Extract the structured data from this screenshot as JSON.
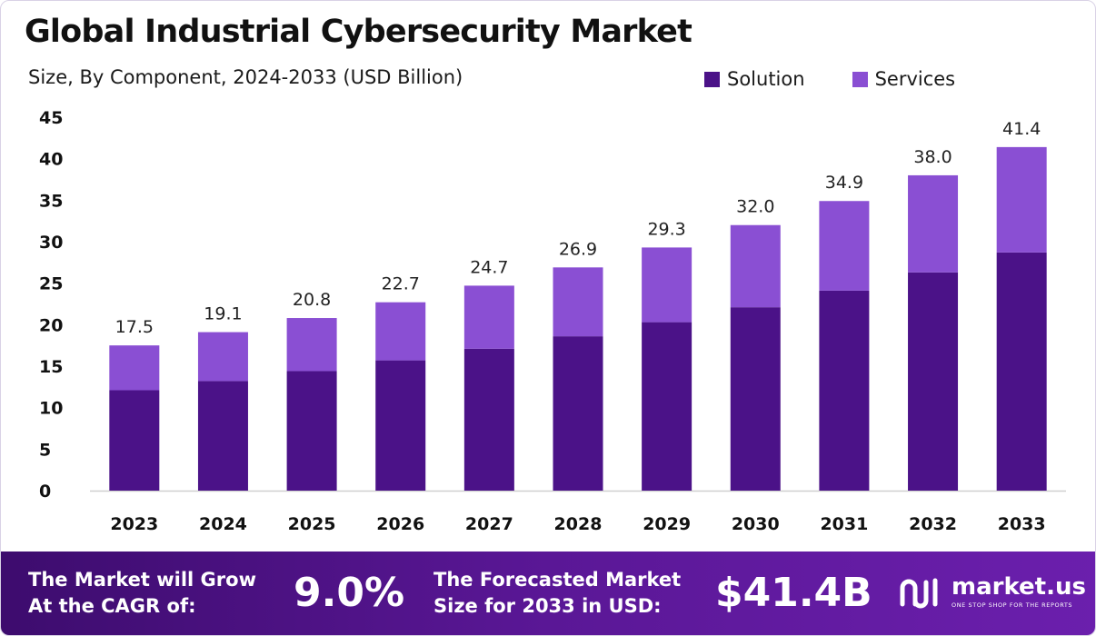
{
  "header": {
    "title": "Global Industrial Cybersecurity Market",
    "subtitle": "Size, By Component, 2024-2033 (USD Billion)"
  },
  "legend": [
    {
      "label": "Solution",
      "color": "#4b1288"
    },
    {
      "label": "Services",
      "color": "#8a4fd3"
    }
  ],
  "chart_data": {
    "type": "bar",
    "stacked": true,
    "title": "Global Industrial Cybersecurity Market",
    "subtitle": "Size, By Component, 2024-2033 (USD Billion)",
    "categories": [
      "2023",
      "2024",
      "2025",
      "2026",
      "2027",
      "2028",
      "2029",
      "2030",
      "2031",
      "2032",
      "2033"
    ],
    "series": [
      {
        "name": "Solution",
        "color": "#4b1288",
        "values": [
          12.1,
          13.2,
          14.4,
          15.7,
          17.1,
          18.6,
          20.3,
          22.1,
          24.1,
          26.3,
          28.7
        ]
      },
      {
        "name": "Services",
        "color": "#8a4fd3",
        "values": [
          5.4,
          5.9,
          6.4,
          7.0,
          7.6,
          8.3,
          9.0,
          9.9,
          10.8,
          11.7,
          12.7
        ]
      }
    ],
    "totals": [
      "17.5",
      "19.1",
      "20.8",
      "22.7",
      "24.7",
      "26.9",
      "29.3",
      "32.0",
      "34.9",
      "38.0",
      "41.4"
    ],
    "yticks": [
      0,
      5,
      10,
      15,
      20,
      25,
      30,
      35,
      40,
      45
    ],
    "ylim": [
      0,
      45
    ],
    "xlabel": "",
    "ylabel": "",
    "grid": false,
    "legend_position": "top-right"
  },
  "footer": {
    "cagr_label_line1": "The Market will Grow",
    "cagr_label_line2": "At the CAGR of:",
    "cagr_value": "9.0%",
    "forecast_label_line1": "The Forecasted Market",
    "forecast_label_line2": "Size for 2033 in USD:",
    "forecast_value": "$41.4B",
    "brand_name": "market.us",
    "brand_tagline": "ONE STOP SHOP FOR THE REPORTS"
  }
}
